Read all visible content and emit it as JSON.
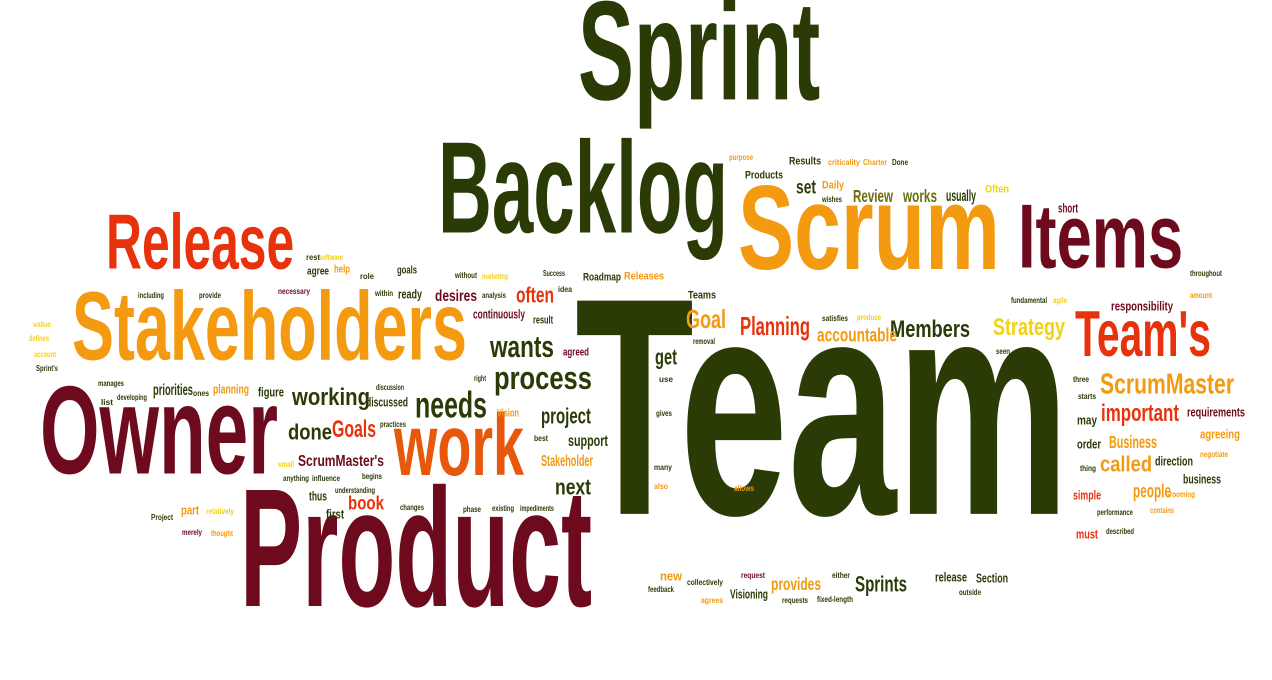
{
  "words": [
    {
      "text": "Team",
      "c": "c0"
    },
    {
      "text": "Product",
      "c": "c1"
    },
    {
      "text": "Backlog",
      "c": "c0"
    },
    {
      "text": "Sprint",
      "c": "c0"
    },
    {
      "text": "Scrum",
      "c": "c3"
    },
    {
      "text": "Owner",
      "c": "c1"
    },
    {
      "text": "Stakeholders",
      "c": "c3"
    },
    {
      "text": "Release",
      "c": "c2"
    },
    {
      "text": "Items",
      "c": "c1"
    },
    {
      "text": "Team's",
      "c": "c2"
    },
    {
      "text": "work",
      "c": "c6"
    },
    {
      "text": "process",
      "c": "c0"
    },
    {
      "text": "needs",
      "c": "c0"
    },
    {
      "text": "wants",
      "c": "c0"
    },
    {
      "text": "ScrumMaster",
      "c": "c3"
    },
    {
      "text": "Planning",
      "c": "c2"
    },
    {
      "text": "Members",
      "c": "c0"
    },
    {
      "text": "Strategy",
      "c": "c4"
    },
    {
      "text": "Goal",
      "c": "c3"
    },
    {
      "text": "working",
      "c": "c0"
    },
    {
      "text": "important",
      "c": "c2"
    },
    {
      "text": "Goals",
      "c": "c2"
    },
    {
      "text": "done",
      "c": "c0"
    },
    {
      "text": "book",
      "c": "c2"
    },
    {
      "text": "next",
      "c": "c0"
    },
    {
      "text": "project",
      "c": "c0"
    },
    {
      "text": "often",
      "c": "c2"
    },
    {
      "text": "accountable",
      "c": "c3"
    },
    {
      "text": "called",
      "c": "c3"
    },
    {
      "text": "Business",
      "c": "c3"
    },
    {
      "text": "people",
      "c": "c3"
    },
    {
      "text": "Sprints",
      "c": "c0"
    },
    {
      "text": "provides",
      "c": "c3"
    },
    {
      "text": "Review",
      "c": "c5"
    },
    {
      "text": "works",
      "c": "c5"
    },
    {
      "text": "usually",
      "c": "c0"
    },
    {
      "text": "set",
      "c": "c0"
    },
    {
      "text": "get",
      "c": "c0"
    },
    {
      "text": "priorities",
      "c": "c0"
    },
    {
      "text": "desires",
      "c": "c1"
    },
    {
      "text": "continuously",
      "c": "c1"
    },
    {
      "text": "ScrumMaster's",
      "c": "c1"
    },
    {
      "text": "Stakeholder",
      "c": "c3"
    },
    {
      "text": "support",
      "c": "c0"
    },
    {
      "text": "discussed",
      "c": "c0"
    },
    {
      "text": "Visioning",
      "c": "c0"
    },
    {
      "text": "Section",
      "c": "c0"
    },
    {
      "text": "release",
      "c": "c0"
    },
    {
      "text": "simple",
      "c": "c2"
    },
    {
      "text": "business",
      "c": "c0"
    },
    {
      "text": "direction",
      "c": "c0"
    },
    {
      "text": "requirements",
      "c": "c1"
    },
    {
      "text": "responsibility",
      "c": "c1"
    },
    {
      "text": "agreeing",
      "c": "c3"
    },
    {
      "text": "must",
      "c": "c2"
    },
    {
      "text": "order",
      "c": "c0"
    },
    {
      "text": "may",
      "c": "c0"
    },
    {
      "text": "short",
      "c": "c1"
    },
    {
      "text": "first",
      "c": "c0"
    },
    {
      "text": "part",
      "c": "c3"
    },
    {
      "text": "thus",
      "c": "c0"
    },
    {
      "text": "new",
      "c": "c3"
    },
    {
      "text": "figure",
      "c": "c0"
    },
    {
      "text": "planning",
      "c": "c3"
    },
    {
      "text": "ready",
      "c": "c0"
    },
    {
      "text": "goals",
      "c": "c0"
    },
    {
      "text": "agree",
      "c": "c0"
    },
    {
      "text": "help",
      "c": "c3"
    },
    {
      "text": "agreed",
      "c": "c1"
    },
    {
      "text": "result",
      "c": "c0"
    },
    {
      "text": "Releases",
      "c": "c3"
    },
    {
      "text": "Roadmap",
      "c": "c0"
    },
    {
      "text": "Teams",
      "c": "c0"
    },
    {
      "text": "Daily",
      "c": "c3"
    },
    {
      "text": "Products",
      "c": "c0"
    },
    {
      "text": "Results",
      "c": "c0"
    },
    {
      "text": "Often",
      "c": "c4"
    },
    {
      "text": "Vision",
      "c": "c3"
    },
    {
      "text": "Success",
      "c": "c0"
    },
    {
      "text": "including",
      "c": "c0"
    },
    {
      "text": "provide",
      "c": "c0"
    },
    {
      "text": "necessary",
      "c": "c1"
    },
    {
      "text": "within",
      "c": "c0"
    },
    {
      "text": "role",
      "c": "c0"
    },
    {
      "text": "rest",
      "c": "c0"
    },
    {
      "text": "software",
      "c": "c4"
    },
    {
      "text": "without",
      "c": "c0"
    },
    {
      "text": "marketing",
      "c": "c4"
    },
    {
      "text": "idea",
      "c": "c0"
    },
    {
      "text": "analysis",
      "c": "c0"
    },
    {
      "text": "value",
      "c": "c4"
    },
    {
      "text": "defines",
      "c": "c4"
    },
    {
      "text": "account",
      "c": "c4"
    },
    {
      "text": "Sprint's",
      "c": "c0"
    },
    {
      "text": "manages",
      "c": "c0"
    },
    {
      "text": "list",
      "c": "c0"
    },
    {
      "text": "developing",
      "c": "c0"
    },
    {
      "text": "ones",
      "c": "c0"
    },
    {
      "text": "discussion",
      "c": "c0"
    },
    {
      "text": "right",
      "c": "c0"
    },
    {
      "text": "practices",
      "c": "c0"
    },
    {
      "text": "small",
      "c": "c4"
    },
    {
      "text": "anything",
      "c": "c0"
    },
    {
      "text": "influence",
      "c": "c0"
    },
    {
      "text": "begins",
      "c": "c0"
    },
    {
      "text": "understanding",
      "c": "c0"
    },
    {
      "text": "Project",
      "c": "c0"
    },
    {
      "text": "relatively",
      "c": "c4"
    },
    {
      "text": "merely",
      "c": "c1"
    },
    {
      "text": "thought",
      "c": "c3"
    },
    {
      "text": "changes",
      "c": "c0"
    },
    {
      "text": "phase",
      "c": "c0"
    },
    {
      "text": "existing",
      "c": "c0"
    },
    {
      "text": "impediments",
      "c": "c0"
    },
    {
      "text": "best",
      "c": "c0"
    },
    {
      "text": "gives",
      "c": "c0"
    },
    {
      "text": "many",
      "c": "c0"
    },
    {
      "text": "also",
      "c": "c3"
    },
    {
      "text": "allows",
      "c": "c3"
    },
    {
      "text": "use",
      "c": "c0"
    },
    {
      "text": "removal",
      "c": "c0"
    },
    {
      "text": "produce",
      "c": "c4"
    },
    {
      "text": "satisfies",
      "c": "c0"
    },
    {
      "text": "feedback",
      "c": "c0"
    },
    {
      "text": "agrees",
      "c": "c3"
    },
    {
      "text": "collectively",
      "c": "c0"
    },
    {
      "text": "request",
      "c": "c1"
    },
    {
      "text": "requests",
      "c": "c0"
    },
    {
      "text": "either",
      "c": "c0"
    },
    {
      "text": "fixed-length",
      "c": "c0"
    },
    {
      "text": "outside",
      "c": "c0"
    },
    {
      "text": "purpose",
      "c": "c3"
    },
    {
      "text": "criticality",
      "c": "c3"
    },
    {
      "text": "Charter",
      "c": "c3"
    },
    {
      "text": "Done",
      "c": "c0"
    },
    {
      "text": "wishes",
      "c": "c0"
    },
    {
      "text": "fundamental",
      "c": "c0"
    },
    {
      "text": "agile",
      "c": "c4"
    },
    {
      "text": "seen",
      "c": "c0"
    },
    {
      "text": "three",
      "c": "c0"
    },
    {
      "text": "starts",
      "c": "c0"
    },
    {
      "text": "thing",
      "c": "c0"
    },
    {
      "text": "performance",
      "c": "c0"
    },
    {
      "text": "described",
      "c": "c0"
    },
    {
      "text": "contains",
      "c": "c3"
    },
    {
      "text": "negotiate",
      "c": "c3"
    },
    {
      "text": "Grooming",
      "c": "c3"
    },
    {
      "text": "throughout",
      "c": "c0"
    },
    {
      "text": "amount",
      "c": "c3"
    }
  ],
  "colors": {
    "c0": "#2a3b06",
    "c1": "#6d0a1e",
    "c2": "#e8320c",
    "c3": "#f39a10",
    "c4": "#f2d012",
    "c5": "#6a6e0a",
    "c6": "#e7580d",
    "background": "#ffffff"
  }
}
